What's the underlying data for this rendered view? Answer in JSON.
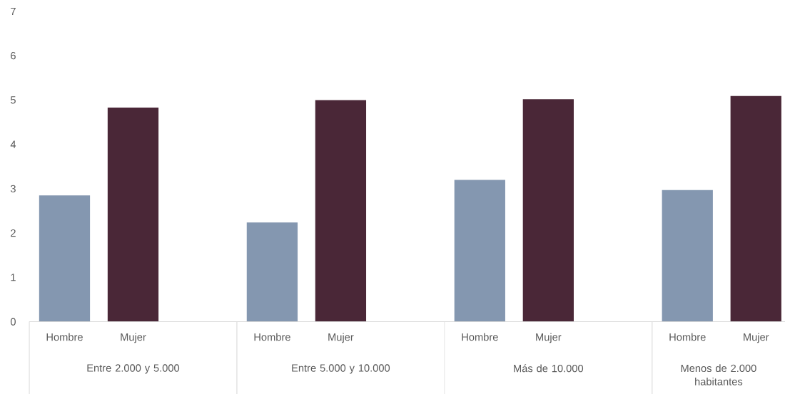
{
  "chart_data": {
    "type": "bar",
    "categories": [
      "Entre 2.000 y 5.000",
      "Entre 5.000 y 10.000",
      "Más de 10.000",
      "Menos de 2.000 habitantes"
    ],
    "series": [
      {
        "name": "Hombre",
        "color": "#8497b0",
        "values": [
          2.85,
          2.24,
          3.2,
          2.97
        ]
      },
      {
        "name": "Mujer",
        "color": "#4a2737",
        "values": [
          4.83,
          5.0,
          5.02,
          5.09
        ]
      }
    ],
    "ylim": [
      0,
      7
    ],
    "yticks": [
      0,
      1,
      2,
      3,
      4,
      5,
      6,
      7
    ]
  }
}
